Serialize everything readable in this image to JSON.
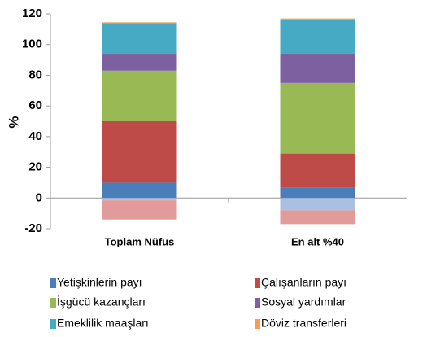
{
  "chart_data": {
    "type": "bar",
    "stacked": true,
    "y_label": "%",
    "categories": [
      "Toplam Nüfus",
      "En alt %40"
    ],
    "ylim": [
      -20,
      120
    ],
    "yticks": [
      -20,
      0,
      20,
      40,
      60,
      80,
      100,
      120
    ],
    "series": [
      {
        "name": "Yetişkinlerin payı",
        "color": "#4a7ebb",
        "values": [
          10,
          7
        ]
      },
      {
        "name": "Çalışanların payı",
        "color": "#be4b48",
        "values": [
          40,
          22
        ]
      },
      {
        "name": "İşgücü kazançları",
        "color": "#98b954",
        "values": [
          33,
          46
        ]
      },
      {
        "name": "Sosyal yardımlar",
        "color": "#7d60a0",
        "values": [
          11,
          19
        ]
      },
      {
        "name": "Emeklilik maaşları",
        "color": "#46aac5",
        "values": [
          20,
          22
        ]
      },
      {
        "name": "Döviz transferleri",
        "color": "#f59d56",
        "values": [
          0.5,
          1
        ]
      },
      {
        "color": "#a9c0e2",
        "values": [
          -1.5,
          -8
        ]
      },
      {
        "color": "#e09b9a",
        "values": [
          -12.5,
          -9
        ]
      }
    ]
  }
}
